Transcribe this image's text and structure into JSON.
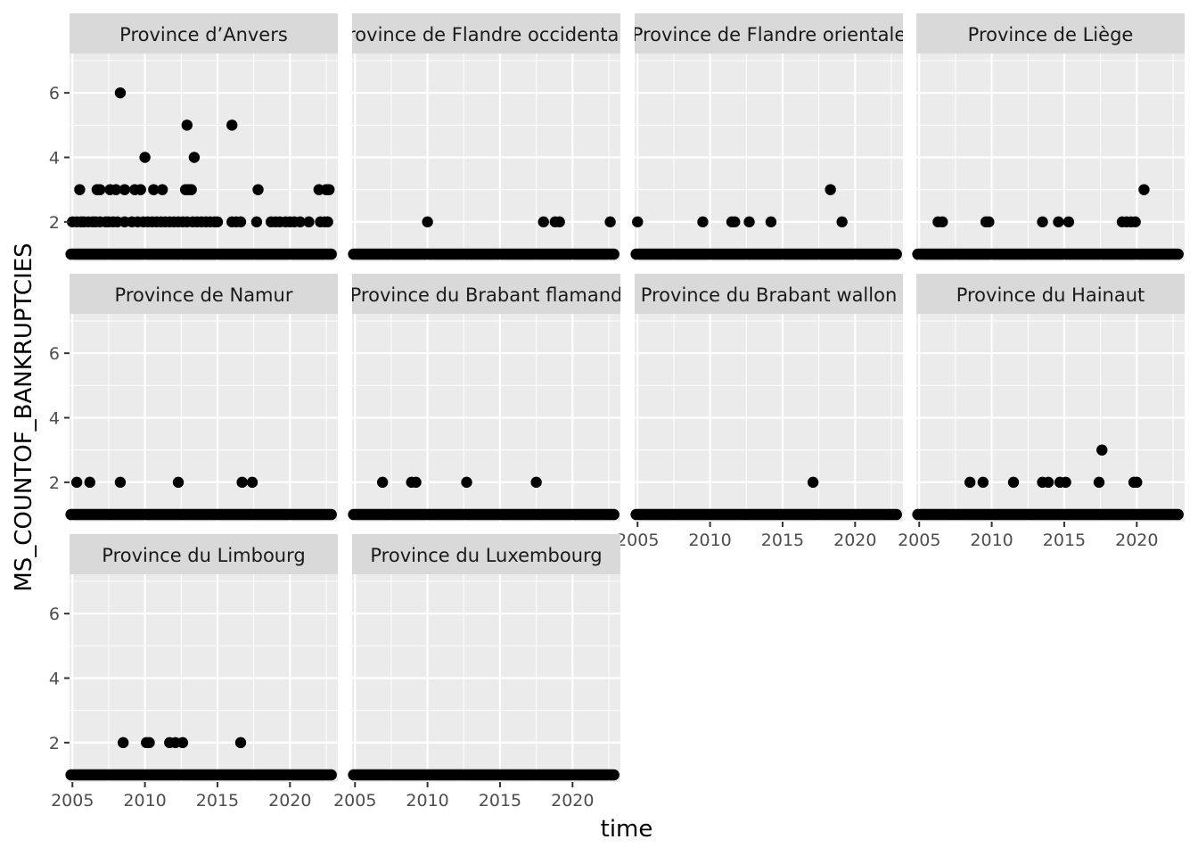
{
  "chart_data": {
    "type": "scatter",
    "facet_layout": {
      "columns": 4,
      "rows": 3
    },
    "xlabel": "time",
    "ylabel": "MS_COUNTOF_BANKRUPTCIES",
    "xlim": [
      2004.8,
      2023.3
    ],
    "ylim": [
      0.78,
      7.22
    ],
    "x_ticks": [
      2005,
      2010,
      2015,
      2020
    ],
    "x_tick_labels": [
      "2005",
      "2010",
      "2015",
      "2020"
    ],
    "y_ticks": [
      2,
      4,
      6
    ],
    "y_tick_labels": [
      "2",
      "4",
      "6"
    ],
    "baseline": {
      "y": 1,
      "x_start": 2004.9,
      "x_end": 2022.85,
      "note": "dense monthly observations with value 1 in every panel"
    },
    "colors": {
      "panel_bg": "#ebebeb",
      "grid": "#ffffff",
      "strip_bg": "#d9d9d9",
      "point": "#000000"
    },
    "panels": [
      {
        "title": "Province d’Anvers",
        "points": [
          [
            2005.5,
            3
          ],
          [
            2006.7,
            3
          ],
          [
            2006.9,
            3
          ],
          [
            2007.6,
            3
          ],
          [
            2008.0,
            3
          ],
          [
            2008.6,
            3
          ],
          [
            2009.3,
            3
          ],
          [
            2009.7,
            3
          ],
          [
            2010.6,
            3
          ],
          [
            2011.2,
            3
          ],
          [
            2012.8,
            3
          ],
          [
            2013.0,
            3
          ],
          [
            2013.2,
            3
          ],
          [
            2017.8,
            3
          ],
          [
            2022.0,
            3
          ],
          [
            2022.5,
            3
          ],
          [
            2022.7,
            3
          ],
          [
            2008.3,
            6
          ],
          [
            2010.0,
            4
          ],
          [
            2013.4,
            4
          ],
          [
            2012.9,
            5
          ],
          [
            2016.0,
            5
          ],
          [
            2005.0,
            2
          ],
          [
            2005.3,
            2
          ],
          [
            2005.6,
            2
          ],
          [
            2005.8,
            2
          ],
          [
            2006.1,
            2
          ],
          [
            2006.4,
            2
          ],
          [
            2006.6,
            2
          ],
          [
            2006.9,
            2
          ],
          [
            2007.3,
            2
          ],
          [
            2007.5,
            2
          ],
          [
            2007.8,
            2
          ],
          [
            2008.1,
            2
          ],
          [
            2008.6,
            2
          ],
          [
            2009.1,
            2
          ],
          [
            2009.5,
            2
          ],
          [
            2009.9,
            2
          ],
          [
            2010.2,
            2
          ],
          [
            2010.5,
            2
          ],
          [
            2010.8,
            2
          ],
          [
            2011.1,
            2
          ],
          [
            2011.4,
            2
          ],
          [
            2011.7,
            2
          ],
          [
            2012.0,
            2
          ],
          [
            2012.3,
            2
          ],
          [
            2012.6,
            2
          ],
          [
            2012.9,
            2
          ],
          [
            2013.3,
            2
          ],
          [
            2013.6,
            2
          ],
          [
            2013.9,
            2
          ],
          [
            2014.2,
            2
          ],
          [
            2014.5,
            2
          ],
          [
            2014.8,
            2
          ],
          [
            2015.0,
            2
          ],
          [
            2016.0,
            2
          ],
          [
            2016.3,
            2
          ],
          [
            2016.6,
            2
          ],
          [
            2017.7,
            2
          ],
          [
            2018.7,
            2
          ],
          [
            2019.0,
            2
          ],
          [
            2019.3,
            2
          ],
          [
            2019.7,
            2
          ],
          [
            2020.0,
            2
          ],
          [
            2020.3,
            2
          ],
          [
            2020.7,
            2
          ],
          [
            2021.3,
            2
          ],
          [
            2022.1,
            2
          ],
          [
            2022.4,
            2
          ],
          [
            2022.6,
            2
          ]
        ]
      },
      {
        "title": "Province de Flandre occidentale",
        "points": [
          [
            2010.0,
            2
          ],
          [
            2018.0,
            2
          ],
          [
            2018.8,
            2
          ],
          [
            2019.1,
            2
          ],
          [
            2022.6,
            2
          ]
        ]
      },
      {
        "title": "Province de Flandre orientale",
        "points": [
          [
            2005.0,
            2
          ],
          [
            2009.5,
            2
          ],
          [
            2011.5,
            2
          ],
          [
            2011.7,
            2
          ],
          [
            2012.7,
            2
          ],
          [
            2014.2,
            2
          ],
          [
            2018.3,
            3
          ],
          [
            2019.1,
            2
          ]
        ]
      },
      {
        "title": "Province de Liège",
        "points": [
          [
            2006.3,
            2
          ],
          [
            2006.6,
            2
          ],
          [
            2009.6,
            2
          ],
          [
            2009.8,
            2
          ],
          [
            2013.5,
            2
          ],
          [
            2014.6,
            2
          ],
          [
            2015.3,
            2
          ],
          [
            2019.0,
            2
          ],
          [
            2019.3,
            2
          ],
          [
            2019.6,
            2
          ],
          [
            2019.9,
            2
          ],
          [
            2020.5,
            3
          ]
        ]
      },
      {
        "title": "Province de Namur",
        "points": [
          [
            2005.3,
            2
          ],
          [
            2006.2,
            2
          ],
          [
            2008.3,
            2
          ],
          [
            2012.3,
            2
          ],
          [
            2016.7,
            2
          ],
          [
            2017.4,
            2
          ]
        ]
      },
      {
        "title": "Province du Brabant flamand",
        "points": [
          [
            2006.9,
            2
          ],
          [
            2008.9,
            2
          ],
          [
            2009.2,
            2
          ],
          [
            2012.7,
            2
          ],
          [
            2017.5,
            2
          ]
        ]
      },
      {
        "title": "Province du Brabant wallon",
        "points": [
          [
            2017.1,
            2
          ]
        ]
      },
      {
        "title": "Province du Hainaut",
        "points": [
          [
            2008.5,
            2
          ],
          [
            2009.4,
            2
          ],
          [
            2011.5,
            2
          ],
          [
            2013.5,
            2
          ],
          [
            2013.9,
            2
          ],
          [
            2014.7,
            2
          ],
          [
            2015.1,
            2
          ],
          [
            2017.4,
            2
          ],
          [
            2017.6,
            3
          ],
          [
            2019.8,
            2
          ],
          [
            2020.0,
            2
          ]
        ]
      },
      {
        "title": "Province du Limbourg",
        "points": [
          [
            2008.5,
            2
          ],
          [
            2010.1,
            2
          ],
          [
            2010.3,
            2
          ],
          [
            2011.7,
            2
          ],
          [
            2012.1,
            2
          ],
          [
            2012.6,
            2
          ],
          [
            2016.6,
            2
          ]
        ]
      },
      {
        "title": "Province du Luxembourg",
        "points": []
      }
    ]
  }
}
